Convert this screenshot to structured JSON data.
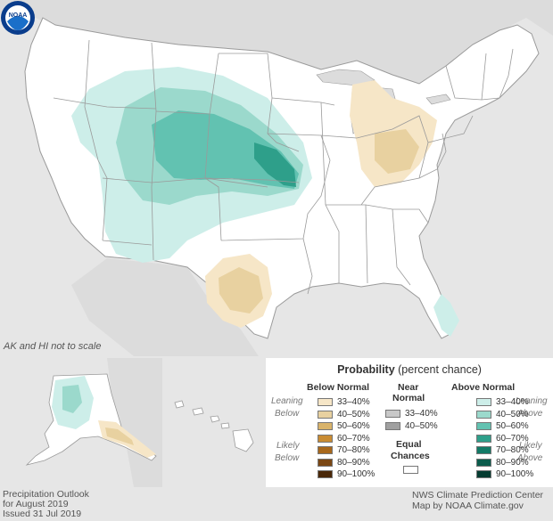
{
  "map": {
    "scale_note": "AK and HI not to scale",
    "logo_text": "NOAA",
    "colors": {
      "background": "#e6e6e6",
      "land": "#ffffff",
      "state_border": "#9a9a9a",
      "above_33_40": "#cdeee9",
      "above_40_50": "#9bd9cc",
      "above_50_60": "#62c2b1",
      "above_60_70": "#2e9f8a",
      "below_33_40": "#f6e6c7",
      "below_40_50": "#e8d1a0"
    }
  },
  "legend": {
    "title_bold": "Probability",
    "title_rest": " (percent chance)",
    "below_header": "Below Normal",
    "near_header_1": "Near",
    "near_header_2": "Normal",
    "above_header": "Above Normal",
    "leaning_below_1": "Leaning",
    "leaning_below_2": "Below",
    "likely_below_1": "Likely",
    "likely_below_2": "Below",
    "leaning_above_1": "Leaning",
    "leaning_above_2": "Above",
    "likely_above_1": "Likely",
    "likely_above_2": "Above",
    "equal_chances_1": "Equal",
    "equal_chances_2": "Chances",
    "below_rows": [
      {
        "label": "33–40%",
        "color": "#f6e6c7"
      },
      {
        "label": "40–50%",
        "color": "#e8d1a0"
      },
      {
        "label": "50–60%",
        "color": "#d9b36a"
      },
      {
        "label": "60–70%",
        "color": "#c98c33"
      },
      {
        "label": "70–80%",
        "color": "#a8681c"
      },
      {
        "label": "80–90%",
        "color": "#7a4714"
      },
      {
        "label": "90–100%",
        "color": "#4a2808"
      }
    ],
    "near_rows": [
      {
        "label": "33–40%",
        "color": "#c8c8c8"
      },
      {
        "label": "40–50%",
        "color": "#a0a0a0"
      }
    ],
    "above_rows": [
      {
        "label": "33–40%",
        "color": "#cdeee9"
      },
      {
        "label": "40–50%",
        "color": "#9bd9cc"
      },
      {
        "label": "50–60%",
        "color": "#62c2b1"
      },
      {
        "label": "60–70%",
        "color": "#2e9f8a"
      },
      {
        "label": "70–80%",
        "color": "#137a66"
      },
      {
        "label": "80–90%",
        "color": "#0b5c4c"
      },
      {
        "label": "90–100%",
        "color": "#053c31"
      }
    ],
    "equal_color": "#ffffff"
  },
  "footer": {
    "left_line1": "Precipitation Outlook",
    "left_line2": "for August 2019",
    "left_line3": "Issued 31 Jul 2019",
    "right_line1": "NWS Climate Prediction Center",
    "right_line2": "Map by NOAA Climate.gov"
  }
}
